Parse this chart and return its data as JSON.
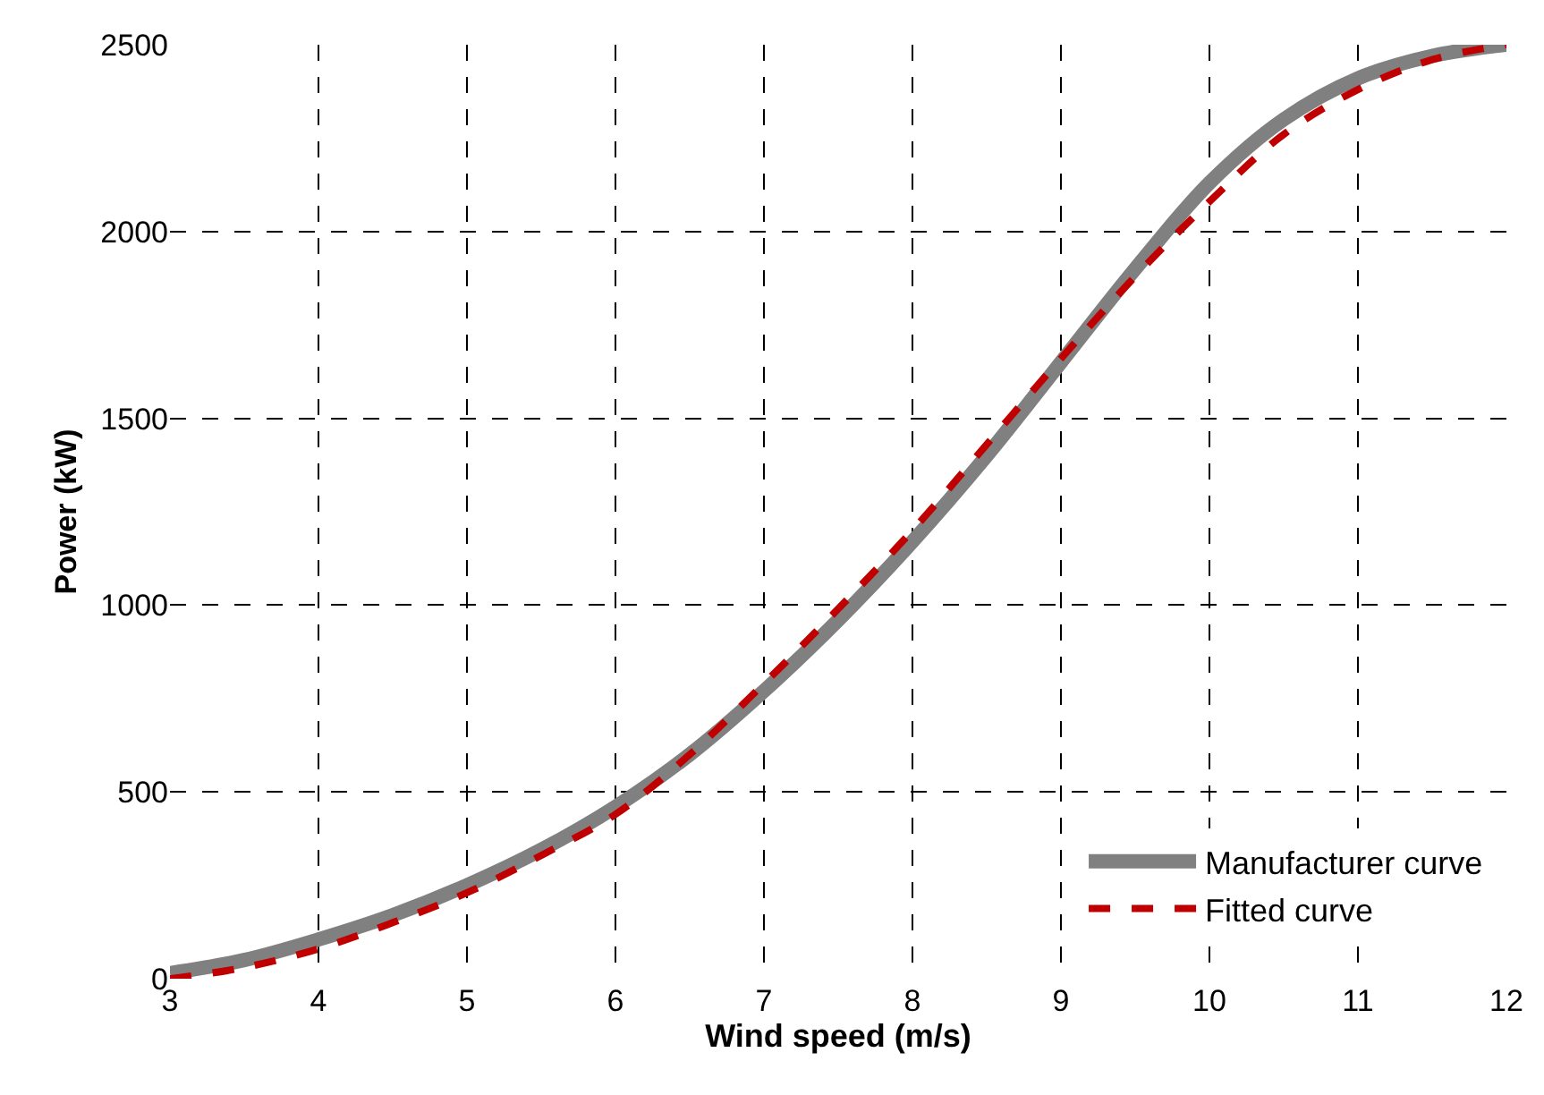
{
  "chart_data": {
    "type": "line",
    "xlabel": "Wind speed (m/s)",
    "ylabel": "Power (kW)",
    "x": [
      3,
      3.5,
      4,
      4.5,
      5,
      5.5,
      6,
      6.5,
      7,
      7.5,
      8,
      8.5,
      9,
      9.5,
      10,
      10.5,
      11,
      11.5,
      12
    ],
    "series": [
      {
        "name": "Manufacturer curve",
        "color": "#808080",
        "line_style": "solid",
        "values": [
          15,
          50,
          105,
          170,
          250,
          345,
          460,
          600,
          770,
          960,
          1170,
          1400,
          1650,
          1900,
          2130,
          2300,
          2410,
          2470,
          2500
        ]
      },
      {
        "name": "Fitted curve",
        "color": "#c00000",
        "line_style": "dashed",
        "values": [
          0,
          30,
          80,
          150,
          230,
          330,
          440,
          600,
          790,
          990,
          1200,
          1430,
          1660,
          1880,
          2080,
          2260,
          2380,
          2460,
          2500
        ]
      }
    ],
    "xlim": [
      3,
      12
    ],
    "xticks": [
      3,
      4,
      5,
      6,
      7,
      8,
      9,
      10,
      11,
      12
    ],
    "ylim": [
      0,
      2500
    ],
    "yticks": [
      0,
      500,
      1000,
      1500,
      2000,
      2500
    ],
    "grid": true,
    "legend": "bottom right",
    "marker": "none"
  }
}
